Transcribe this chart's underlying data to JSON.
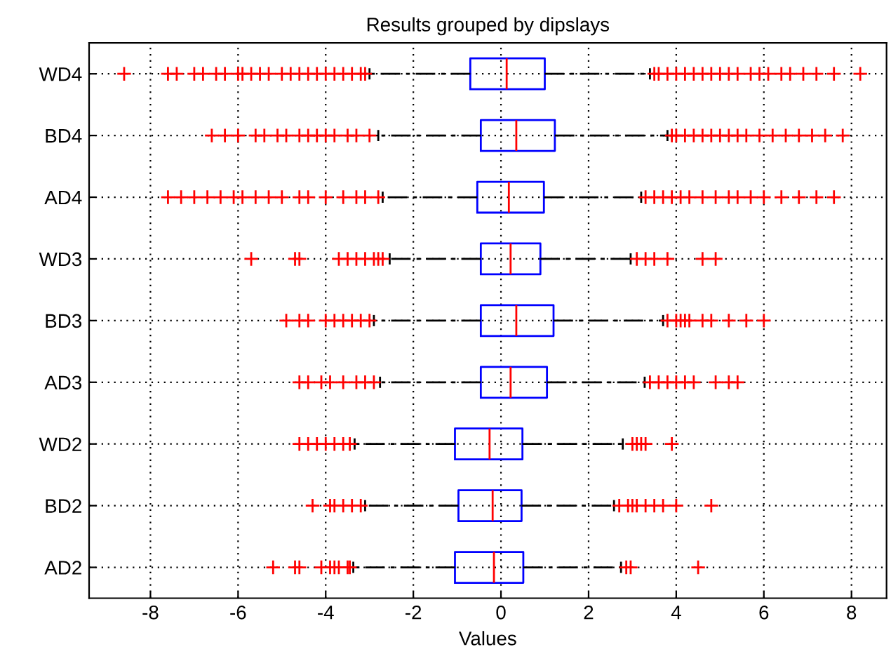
{
  "chart_data": {
    "type": "box",
    "title": "Results grouped by dipslays",
    "xlabel": "Values",
    "orientation": "horizontal",
    "categories": [
      "WD4",
      "BD4",
      "AD4",
      "WD3",
      "BD3",
      "AD3",
      "WD2",
      "BD2",
      "AD2"
    ],
    "series": [
      {
        "color": "#0000ff",
        "boxes": [
          {
            "low": -3.0,
            "q1": -0.7,
            "median": 0.13,
            "q3": 1.0,
            "high": 3.4,
            "outliers": [
              -8.6,
              -7.6,
              -7.4,
              -7.0,
              -6.8,
              -6.5,
              -6.3,
              -6.0,
              -5.9,
              -5.7,
              -5.5,
              -5.3,
              -5.0,
              -4.8,
              -4.6,
              -4.4,
              -4.2,
              -4.0,
              -3.8,
              -3.6,
              -3.4,
              -3.2,
              -3.1,
              3.5,
              3.6,
              3.8,
              4.0,
              4.2,
              4.4,
              4.6,
              4.8,
              5.0,
              5.2,
              5.4,
              5.7,
              5.9,
              6.1,
              6.4,
              6.6,
              6.9,
              7.2,
              7.6,
              8.2
            ]
          },
          {
            "low": -2.8,
            "q1": -0.46,
            "median": 0.35,
            "q3": 1.23,
            "high": 3.8,
            "outliers": [
              -6.6,
              -6.3,
              -6.0,
              -5.6,
              -5.4,
              -5.1,
              -4.9,
              -4.6,
              -4.4,
              -4.2,
              -4.0,
              -3.8,
              -3.5,
              -3.3,
              -3.0,
              3.9,
              4.0,
              4.2,
              4.4,
              4.6,
              4.8,
              5.0,
              5.2,
              5.4,
              5.6,
              5.9,
              6.2,
              6.5,
              6.8,
              7.1,
              7.4,
              7.8
            ]
          },
          {
            "low": -2.7,
            "q1": -0.54,
            "median": 0.18,
            "q3": 0.98,
            "high": 3.2,
            "outliers": [
              -7.6,
              -7.3,
              -7.0,
              -6.7,
              -6.4,
              -6.1,
              -5.9,
              -5.6,
              -5.3,
              -5.0,
              -4.6,
              -4.4,
              -4.0,
              -3.6,
              -3.3,
              -3.1,
              -2.8,
              3.3,
              3.5,
              3.7,
              3.9,
              4.1,
              4.3,
              4.6,
              4.9,
              5.2,
              5.4,
              5.7,
              6.0,
              6.4,
              6.8,
              7.2,
              7.6
            ]
          },
          {
            "low": -2.54,
            "q1": -0.46,
            "median": 0.22,
            "q3": 0.9,
            "high": 2.96,
            "outliers": [
              -5.7,
              -4.7,
              -4.6,
              -3.7,
              -3.5,
              -3.3,
              -3.1,
              -2.9,
              -2.8,
              -2.7,
              3.1,
              3.3,
              3.5,
              3.8,
              4.6,
              4.9
            ]
          },
          {
            "low": -2.9,
            "q1": -0.46,
            "median": 0.35,
            "q3": 1.2,
            "high": 3.7,
            "outliers": [
              -4.9,
              -4.6,
              -4.4,
              -4.0,
              -3.8,
              -3.6,
              -3.4,
              -3.2,
              -3.0,
              3.8,
              4.0,
              4.1,
              4.2,
              4.3,
              4.6,
              4.8,
              5.2,
              5.6,
              6.0
            ]
          },
          {
            "low": -2.76,
            "q1": -0.46,
            "median": 0.22,
            "q3": 1.05,
            "high": 3.28,
            "outliers": [
              -4.6,
              -4.4,
              -4.1,
              -3.9,
              -3.6,
              -3.3,
              -3.1,
              -2.9,
              3.4,
              3.6,
              3.8,
              4.0,
              4.2,
              4.4,
              4.9,
              5.2,
              5.4
            ]
          },
          {
            "low": -3.34,
            "q1": -1.05,
            "median": -0.26,
            "q3": 0.49,
            "high": 2.78,
            "outliers": [
              -4.6,
              -4.4,
              -4.2,
              -4.0,
              -3.8,
              -3.6,
              -3.45,
              3.0,
              3.1,
              3.2,
              3.3,
              3.9
            ]
          },
          {
            "low": -3.1,
            "q1": -0.97,
            "median": -0.19,
            "q3": 0.47,
            "high": 2.58,
            "outliers": [
              -4.3,
              -3.9,
              -3.8,
              -3.6,
              -3.4,
              -3.2,
              2.7,
              2.9,
              3.0,
              3.1,
              3.3,
              3.5,
              3.7,
              4.0,
              4.8
            ]
          },
          {
            "low": -3.37,
            "q1": -1.05,
            "median": -0.16,
            "q3": 0.51,
            "high": 2.74,
            "outliers": [
              -5.2,
              -4.7,
              -4.6,
              -4.1,
              -3.9,
              -3.8,
              -3.7,
              -3.5,
              -3.45,
              2.86,
              2.96,
              4.5
            ]
          }
        ]
      }
    ],
    "xlim": [
      -9.4,
      8.8
    ],
    "xticks": [
      -8,
      -6,
      -4,
      -2,
      0,
      2,
      4,
      6,
      8
    ],
    "grid": true,
    "marker": "cross"
  }
}
